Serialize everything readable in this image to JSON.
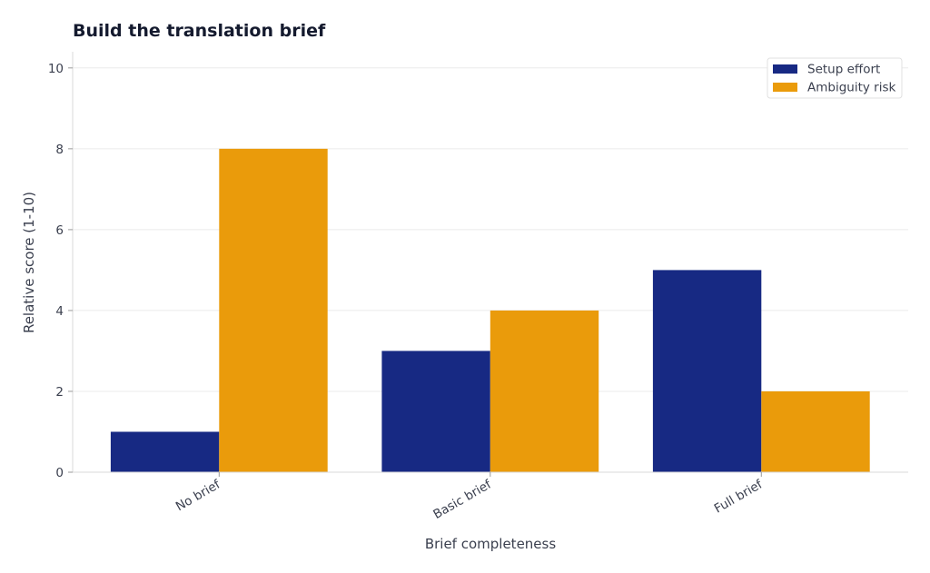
{
  "chart_data": {
    "type": "bar",
    "title": "Build the translation brief",
    "xlabel": "Brief completeness",
    "ylabel": "Relative score (1-10)",
    "categories": [
      "No brief",
      "Basic brief",
      "Full brief"
    ],
    "series": [
      {
        "name": "Setup effort",
        "values": [
          1,
          3,
          5
        ],
        "color": "#172983"
      },
      {
        "name": "Ambiguity risk",
        "values": [
          8,
          4,
          2
        ],
        "color": "#ea9b0b"
      }
    ],
    "ylim": [
      0,
      10.4
    ],
    "yticks": [
      0,
      2,
      4,
      6,
      8,
      10
    ],
    "grid": true,
    "legend": "top-right"
  }
}
